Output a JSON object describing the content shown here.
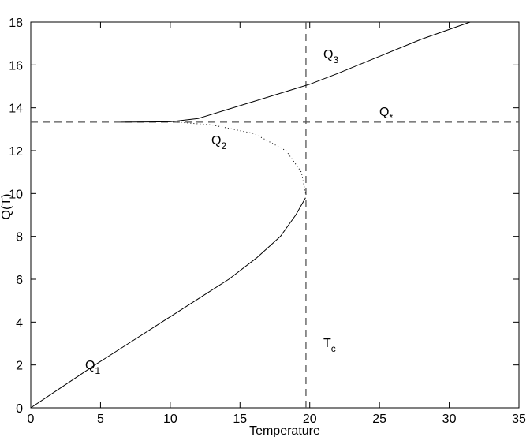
{
  "chart_data": {
    "type": "line",
    "xlabel": "Temperature",
    "ylabel": "Q(T)",
    "xlim": [
      0,
      35
    ],
    "ylim": [
      0,
      18
    ],
    "xticks": [
      0,
      5,
      10,
      15,
      20,
      25,
      30,
      35
    ],
    "yticks": [
      0,
      2,
      4,
      6,
      8,
      10,
      12,
      14,
      16,
      18
    ],
    "hlines": [
      13.33
    ],
    "vlines": [
      19.73
    ],
    "series": [
      {
        "color": "#000000",
        "dash": "solid",
        "x": [
          0,
          2.3,
          4.6,
          7,
          9.4,
          11.8,
          14.2,
          16.2,
          17.9,
          19,
          19.7
        ],
        "values": [
          0,
          1,
          2,
          3,
          4,
          5,
          6,
          7,
          8,
          9,
          9.8
        ]
      },
      {
        "color": "#000000",
        "dash": "dotted",
        "x": [
          19.7,
          19.4,
          18.3,
          16,
          13,
          10.5
        ],
        "values": [
          10,
          11,
          12,
          12.8,
          13.2,
          13.33
        ]
      },
      {
        "color": "#000000",
        "dash": "solid",
        "x": [
          6.5,
          10,
          12,
          14,
          16,
          18,
          20,
          22,
          25,
          28,
          31.5
        ],
        "values": [
          13.33,
          13.35,
          13.5,
          13.9,
          14.3,
          14.7,
          15.1,
          15.6,
          16.4,
          17.2,
          18
        ]
      }
    ],
    "annotations": [
      {
        "text": "Q",
        "sub": "1"
      },
      {
        "text": "Q",
        "sub": "2"
      },
      {
        "text": "Q",
        "sub": "3"
      },
      {
        "text": "Q",
        "sub": "*"
      },
      {
        "text": "T",
        "sub": "c"
      }
    ]
  }
}
